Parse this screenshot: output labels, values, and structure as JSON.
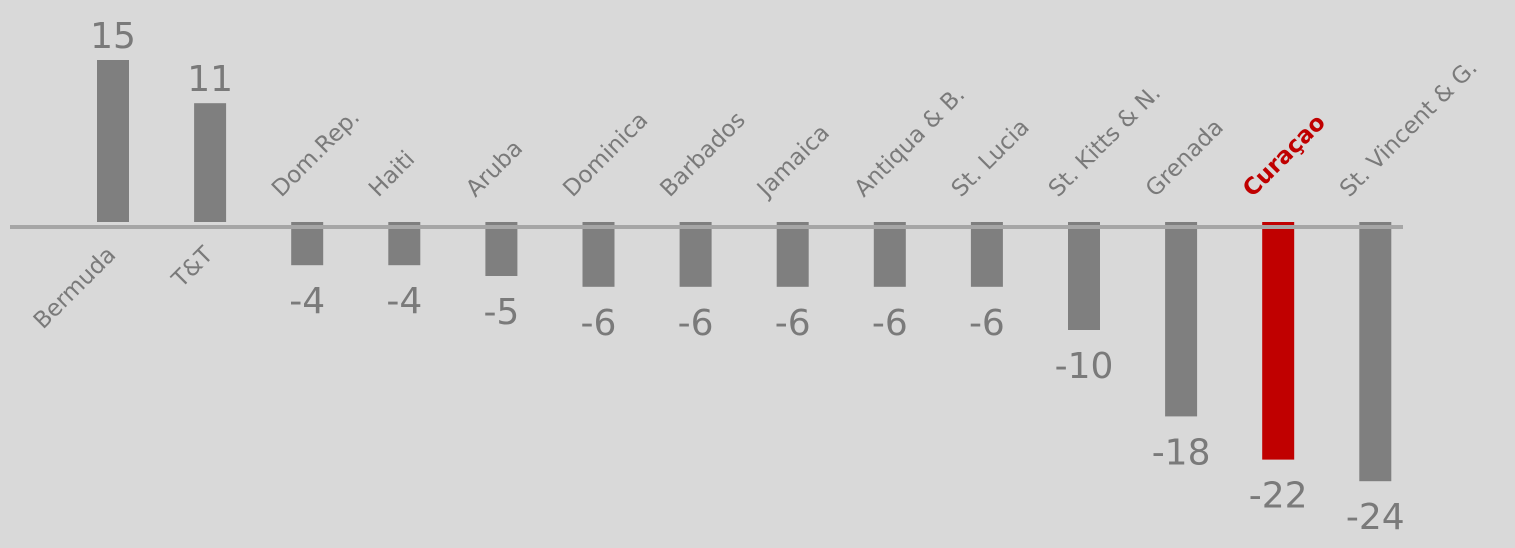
{
  "chart_data": {
    "type": "bar",
    "categories": [
      "Bermuda",
      "T&T",
      "Dom.Rep.",
      "Haiti",
      "Aruba",
      "Dominica",
      "Barbados",
      "Jamaica",
      "Antiqua & B.",
      "St. Lucia",
      "St. Kitts & N.",
      "Grenada",
      "Curaçao",
      "St. Vincent & G."
    ],
    "values": [
      15,
      11,
      -4,
      -4,
      -5,
      -6,
      -6,
      -6,
      -6,
      -6,
      -10,
      -18,
      -22,
      -24
    ],
    "value_labels": [
      "15",
      "11",
      "-4",
      "-4",
      "-5",
      "-6",
      "-6",
      "-6",
      "-6",
      "-6",
      "-10",
      "-18",
      "-22",
      "-24"
    ],
    "highlight_category": "Curaçao",
    "colors": {
      "bar": "#7f7f7f",
      "highlight": "#c00000",
      "baseline": "#a6a6a6",
      "text": "#7a7a7a",
      "background": "#d9d9d9"
    },
    "title": "",
    "xlabel": "",
    "ylabel": "",
    "grid": false,
    "legend": "none"
  }
}
